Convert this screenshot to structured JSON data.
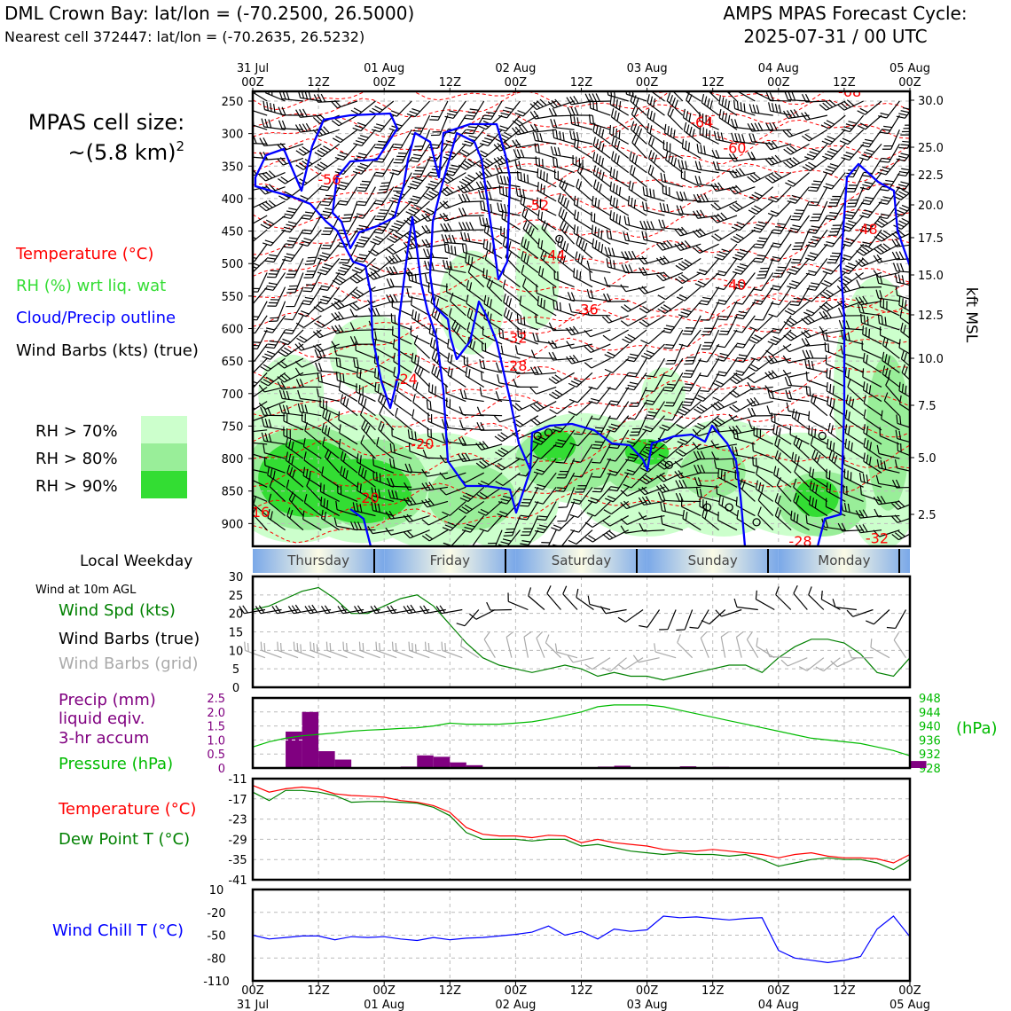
{
  "header": {
    "station_title": "DML Crown Bay: lat/lon = (-70.2500, 26.5000)",
    "nearest_cell": "Nearest cell 372447: lat/lon = (-70.2635, 26.5232)",
    "forecast_line1": "AMPS MPAS Forecast Cycle:",
    "forecast_line2": "2025-07-31 / 00 UTC"
  },
  "legend": {
    "cell_size_line1": "MPAS cell size:",
    "cell_size_line2": "~(5.8 km)",
    "cell_size_sup": "2",
    "temperature": "Temperature (°C)",
    "rh": "RH (%) wrt liq. wat",
    "cloud": "Cloud/Precip outline",
    "wind_barbs": "Wind Barbs (kts) (true)",
    "rh70": "RH > 70%",
    "rh80": "RH > 80%",
    "rh90": "RH > 90%",
    "local_weekday": "Local Weekday",
    "wind_10m": "Wind at 10m AGL",
    "wind_spd": "Wind Spd (kts)",
    "wind_barbs_true": "Wind Barbs (true)",
    "wind_barbs_grid": "Wind Barbs (grid)",
    "precip1": "Precip (mm)",
    "precip2": "liquid eqiv.",
    "precip3": "3-hr accum",
    "pressure": "Pressure (hPa)",
    "pressure_unit": "(hPa)",
    "temp2": "Temperature (°C)",
    "dew": "Dew Point T (°C)",
    "windchill": "Wind Chill T (°C)",
    "kft": "kft MSL"
  },
  "colors": {
    "temperature": "#ff0000",
    "rh": "#33dd33",
    "cloud": "#0000ff",
    "wind": "#000000",
    "grid_wind": "#aaaaaa",
    "precip": "#800080",
    "pressure": "#00bb00",
    "dew": "#008000",
    "windchill": "#0000ff",
    "rh70": "#ccffcc",
    "rh80": "#99ee99",
    "rh90": "#33dd33"
  },
  "chart_data": [
    {
      "type": "heatmap",
      "name": "time-height cross section",
      "x_ticks_top": [
        "00Z",
        "12Z",
        "00Z",
        "12Z",
        "00Z",
        "12Z",
        "00Z",
        "12Z",
        "00Z",
        "12Z",
        "00Z"
      ],
      "x_dates_top": [
        "31 Jul",
        "01 Aug",
        "02 Aug",
        "03 Aug",
        "04 Aug",
        "05 Aug"
      ],
      "y_ticks_hpa": [
        "250",
        "300",
        "350",
        "400",
        "450",
        "500",
        "550",
        "600",
        "650",
        "700",
        "750",
        "800",
        "850",
        "900"
      ],
      "y_ticks_kft": [
        "30.0",
        "25.0",
        "22.5",
        "20.0",
        "17.5",
        "15.0",
        "12.5",
        "10.0",
        "7.5",
        "5.0",
        "2.5"
      ],
      "temperature_labels": [
        {
          "text": "-68",
          "hour": 109,
          "hpa": 243
        },
        {
          "text": "-64",
          "hour": 82,
          "hpa": 290
        },
        {
          "text": "-60",
          "hour": 88,
          "hpa": 330
        },
        {
          "text": "-56",
          "hour": 14,
          "hpa": 378
        },
        {
          "text": "-52",
          "hour": 52,
          "hpa": 418
        },
        {
          "text": "-48",
          "hour": 112,
          "hpa": 455
        },
        {
          "text": "-44",
          "hour": 55,
          "hpa": 495
        },
        {
          "text": "-40",
          "hour": 88,
          "hpa": 540
        },
        {
          "text": "-36",
          "hour": 61,
          "hpa": 578
        },
        {
          "text": "-32",
          "hour": 48,
          "hpa": 622
        },
        {
          "text": "-28",
          "hour": 48,
          "hpa": 665
        },
        {
          "text": "-24",
          "hour": 28,
          "hpa": 685
        },
        {
          "text": "-20",
          "hour": 31,
          "hpa": 785
        },
        {
          "text": "-20",
          "hour": 21,
          "hpa": 868
        },
        {
          "text": "-16",
          "hour": 1,
          "hpa": 890
        },
        {
          "text": "-28",
          "hour": 100,
          "hpa": 935
        },
        {
          "text": "-32",
          "hour": 114,
          "hpa": 930
        }
      ]
    },
    {
      "type": "line",
      "name": "10m wind speed",
      "x_hours": [
        0,
        3,
        6,
        9,
        12,
        15,
        18,
        21,
        24,
        27,
        30,
        33,
        36,
        39,
        42,
        45,
        48,
        51,
        54,
        57,
        60,
        63,
        66,
        69,
        72,
        75,
        78,
        81,
        84,
        87,
        90,
        93,
        96,
        99,
        102,
        105,
        108,
        111,
        114,
        117,
        120
      ],
      "series": [
        {
          "name": "Wind Spd (kts)",
          "values": [
            21,
            22,
            24,
            26,
            27,
            24,
            20,
            20,
            22,
            24,
            25,
            22,
            17,
            12,
            8,
            6,
            5,
            4,
            5,
            6,
            5,
            3,
            4,
            3,
            3,
            2,
            3,
            4,
            5,
            6,
            6,
            4,
            8,
            11,
            13,
            13,
            12,
            9,
            4,
            3,
            8
          ]
        }
      ],
      "ylim": [
        0,
        30
      ],
      "y_ticks": [
        "0",
        "5",
        "10",
        "15",
        "20",
        "25",
        "30"
      ]
    },
    {
      "type": "bar",
      "name": "precip and pressure",
      "x_hours": [
        0,
        3,
        6,
        9,
        12,
        15,
        18,
        21,
        24,
        27,
        30,
        33,
        36,
        39,
        42,
        45,
        48,
        51,
        54,
        57,
        60,
        63,
        66,
        69,
        72,
        75,
        78,
        81,
        84,
        87,
        90,
        93,
        96,
        99,
        102,
        105,
        108,
        111,
        114,
        117,
        120
      ],
      "series": [
        {
          "name": "Precip (mm)",
          "values": [
            0,
            0,
            1.3,
            2.0,
            0.6,
            0.3,
            0,
            0,
            0,
            0.05,
            0.45,
            0.4,
            0.2,
            0.1,
            0,
            0,
            0,
            0,
            0,
            0,
            0,
            0.05,
            0.08,
            0,
            0,
            0,
            0.06,
            0,
            0.04,
            0,
            0,
            0,
            0,
            0,
            0,
            0,
            0,
            0,
            0,
            0,
            0.25
          ]
        },
        {
          "name": "Pressure (hPa)",
          "values": [
            934.0,
            935.5,
            936.5,
            937.2,
            937.6,
            938.0,
            938.5,
            938.8,
            939.0,
            939.3,
            939.5,
            940.0,
            940.8,
            940.5,
            940.5,
            940.5,
            940.8,
            941.2,
            942.0,
            943.0,
            944.0,
            945.5,
            946.0,
            946.0,
            946.0,
            945.5,
            944.5,
            943.5,
            942.5,
            941.5,
            940.5,
            939.5,
            938.5,
            937.5,
            936.5,
            936.0,
            935.5,
            935.0,
            934.0,
            933.0,
            931.5
          ]
        }
      ],
      "precip_ylim": [
        0,
        2.5
      ],
      "precip_ticks": [
        "0",
        "0.5",
        "1.0",
        "1.5",
        "2.0",
        "2.5"
      ],
      "pressure_ylim": [
        928,
        948
      ],
      "pressure_ticks": [
        "928",
        "932",
        "936",
        "940",
        "944",
        "948"
      ]
    },
    {
      "type": "line",
      "name": "temperature and dew point",
      "x_hours": [
        0,
        3,
        6,
        9,
        12,
        15,
        18,
        21,
        24,
        27,
        30,
        33,
        36,
        39,
        42,
        45,
        48,
        51,
        54,
        57,
        60,
        63,
        66,
        69,
        72,
        75,
        78,
        81,
        84,
        87,
        90,
        93,
        96,
        99,
        102,
        105,
        108,
        111,
        114,
        117,
        120
      ],
      "series": [
        {
          "name": "Temperature (°C)",
          "values": [
            -13,
            -15,
            -14,
            -13.5,
            -14,
            -15.5,
            -16,
            -16.2,
            -16.5,
            -17.5,
            -18,
            -19,
            -21,
            -25.5,
            -27.5,
            -28,
            -28,
            -28.5,
            -27.8,
            -28,
            -30,
            -29,
            -30,
            -30.5,
            -31,
            -32,
            -32.5,
            -32.5,
            -32,
            -32.5,
            -33,
            -33.5,
            -34.5,
            -33.5,
            -33,
            -34,
            -34.5,
            -34.5,
            -34.8,
            -36,
            -33.5
          ]
        },
        {
          "name": "Dew Point T (°C)",
          "values": [
            -15,
            -17.5,
            -14.5,
            -14.5,
            -15,
            -16,
            -18,
            -17.8,
            -17.8,
            -18,
            -18.3,
            -19.5,
            -22,
            -27,
            -29,
            -29,
            -29,
            -29.5,
            -29,
            -29,
            -31,
            -30.5,
            -31.5,
            -32.5,
            -33,
            -33.5,
            -33,
            -33.5,
            -33.5,
            -34,
            -33.5,
            -35,
            -37,
            -36,
            -35,
            -34.5,
            -35,
            -35,
            -36,
            -38,
            -35
          ]
        }
      ],
      "ylim": [
        -41,
        -11
      ],
      "y_ticks": [
        "-11",
        "-17",
        "-23",
        "-29",
        "-35",
        "-41"
      ]
    },
    {
      "type": "line",
      "name": "wind chill",
      "x_hours": [
        0,
        3,
        6,
        9,
        12,
        15,
        18,
        21,
        24,
        27,
        30,
        33,
        36,
        39,
        42,
        45,
        48,
        51,
        54,
        57,
        60,
        63,
        66,
        69,
        72,
        75,
        78,
        81,
        84,
        87,
        90,
        93,
        96,
        99,
        102,
        105,
        108,
        111,
        114,
        117,
        120
      ],
      "series": [
        {
          "name": "Wind Chill T (°C)",
          "values": [
            -50,
            -55,
            -53,
            -51,
            -51,
            -56,
            -52,
            -53,
            -52,
            -55,
            -57,
            -53,
            -56,
            -54,
            -53,
            -51,
            -49,
            -46,
            -38,
            -50,
            -45,
            -55,
            -42,
            -45,
            -43,
            -25,
            -27,
            -26,
            -28,
            -30,
            -28,
            -27,
            -70,
            -80,
            -83,
            -86,
            -83,
            -78,
            -42,
            -25,
            -52
          ]
        }
      ],
      "ylim": [
        -110,
        10
      ],
      "y_ticks": [
        "10",
        "-20",
        "-50",
        "-80",
        "-110"
      ]
    }
  ],
  "weekdays": [
    "Thursday",
    "Friday",
    "Saturday",
    "Sunday",
    "Monday"
  ],
  "bottom_axis": {
    "ticks": [
      "00Z",
      "12Z",
      "00Z",
      "12Z",
      "00Z",
      "12Z",
      "00Z",
      "12Z",
      "00Z",
      "12Z",
      "00Z"
    ],
    "dates": [
      "31 Jul",
      "01 Aug",
      "02 Aug",
      "03 Aug",
      "04 Aug",
      "05 Aug"
    ]
  }
}
